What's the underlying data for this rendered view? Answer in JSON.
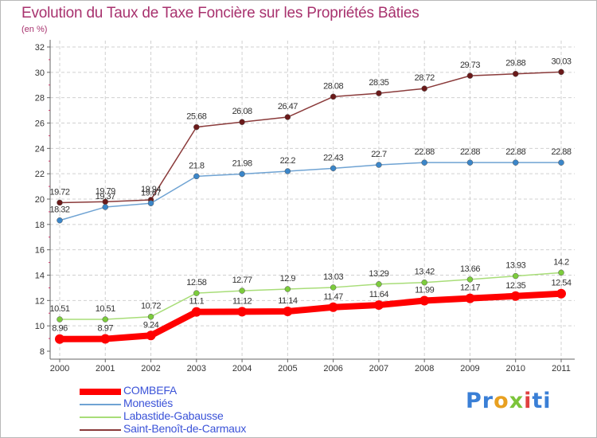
{
  "title": "Evolution du Taux de Taxe Foncière sur les Propriétés Bâties",
  "subtitle": "(en %)",
  "logo": {
    "letters": [
      "P",
      "r",
      "o",
      "x",
      "i",
      "t",
      "i"
    ],
    "colors": [
      "#3a7fd6",
      "#3a7fd6",
      "#e8a020",
      "#7cc43a",
      "#e04040",
      "#3a7fd6",
      "#3a7fd6"
    ]
  },
  "chart_data": {
    "type": "line",
    "x": [
      "2000",
      "2001",
      "2002",
      "2003",
      "2004",
      "2005",
      "2006",
      "2007",
      "2008",
      "2009",
      "2010",
      "2011"
    ],
    "ylim": [
      8,
      32
    ],
    "yticks": [
      "8",
      "10",
      "12",
      "14",
      "16",
      "18",
      "20",
      "22",
      "24",
      "26",
      "28",
      "30",
      "32"
    ],
    "grid": true,
    "legend_position": "bottom-left",
    "series": [
      {
        "name": "COMBEFA",
        "color": "#ff0000",
        "marker": "#ff0000",
        "width": 8,
        "values": [
          8.96,
          8.97,
          9.24,
          11.1,
          11.12,
          11.14,
          11.47,
          11.64,
          11.99,
          12.17,
          12.35,
          12.54
        ],
        "labels": [
          "8.96",
          "8.97",
          "9.24",
          "11.1",
          "11.12",
          "11.14",
          "11.47",
          "11.64",
          "11.99",
          "12.17",
          "12.35",
          "12.54"
        ]
      },
      {
        "name": "Monestiés",
        "color": "#6fa3d3",
        "marker": "#3b86c9",
        "width": 1.5,
        "values": [
          18.32,
          19.37,
          19.67,
          21.8,
          21.98,
          22.2,
          22.43,
          22.7,
          22.88,
          22.88,
          22.88,
          22.88
        ],
        "labels": [
          "18.32",
          "19.37",
          "19.67",
          "21.8",
          "21.98",
          "22.2",
          "22.43",
          "22.7",
          "22.88",
          "22.88",
          "22.88",
          "22.88"
        ]
      },
      {
        "name": "Labastide-Gabausse",
        "color": "#a8dd78",
        "marker": "#7ccc3c",
        "width": 1.5,
        "values": [
          10.51,
          10.51,
          10.72,
          12.58,
          12.77,
          12.9,
          13.03,
          13.29,
          13.42,
          13.66,
          13.93,
          14.2
        ],
        "labels": [
          "10.51",
          "10.51",
          "10.72",
          "12.58",
          "12.77",
          "12.9",
          "13.03",
          "13.29",
          "13.42",
          "13.66",
          "13.93",
          "14.2"
        ]
      },
      {
        "name": "Saint-Benoît-de-Carmaux",
        "color": "#8a3a3a",
        "marker": "#6b1a1a",
        "width": 1.5,
        "values": [
          19.72,
          19.79,
          19.94,
          25.68,
          26.08,
          26.47,
          28.08,
          28.35,
          28.72,
          29.73,
          29.88,
          30.03
        ],
        "labels": [
          "19.72",
          "19.79",
          "19.94",
          "25.68",
          "26.08",
          "26.47",
          "28.08",
          "28.35",
          "28.72",
          "29.73",
          "29.88",
          "30.03"
        ]
      }
    ]
  }
}
